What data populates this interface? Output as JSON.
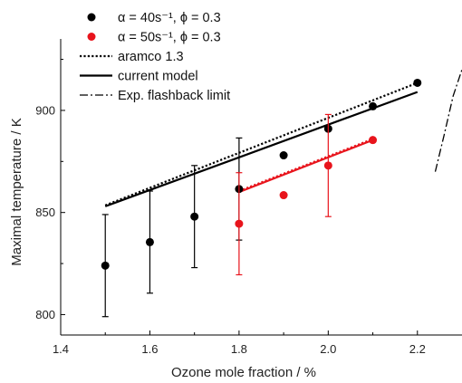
{
  "chart_data": {
    "type": "scatter",
    "xlabel": "Ozone mole fraction / %",
    "ylabel": "Maximal temperature / K",
    "xlim": [
      1.4,
      2.3
    ],
    "ylim": [
      790,
      935
    ],
    "xticks": [
      "1.4",
      "1.6",
      "1.8",
      "2.0",
      "2.2"
    ],
    "yticks": [
      "800",
      "850",
      "900"
    ],
    "grid": false,
    "legend_position": "top-left",
    "colors": {
      "black": "#000000",
      "red": "#e8141c"
    },
    "series": [
      {
        "name": "α = 40s⁻¹, ϕ = 0.3",
        "kind": "points",
        "color": "#000000",
        "points": [
          {
            "x": 1.5,
            "y": 824,
            "err": 25
          },
          {
            "x": 1.6,
            "y": 835.5,
            "err": 25
          },
          {
            "x": 1.7,
            "y": 848,
            "err": 25
          },
          {
            "x": 1.8,
            "y": 861.5,
            "err": 25
          },
          {
            "x": 1.9,
            "y": 878,
            "err": 0
          },
          {
            "x": 2.0,
            "y": 891,
            "err": 0
          },
          {
            "x": 2.1,
            "y": 902,
            "err": 0
          },
          {
            "x": 2.2,
            "y": 913.5,
            "err": 0
          }
        ]
      },
      {
        "name": "α = 50s⁻¹, ϕ = 0.3",
        "kind": "points",
        "color": "#e8141c",
        "points": [
          {
            "x": 1.8,
            "y": 844.5,
            "err": 25
          },
          {
            "x": 1.9,
            "y": 858.5,
            "err": 0
          },
          {
            "x": 2.0,
            "y": 873,
            "err": 25
          },
          {
            "x": 2.1,
            "y": 885.5,
            "err": 0
          }
        ]
      },
      {
        "name": "aramco 1.3",
        "kind": "line",
        "style": "dotted",
        "color": "#000000",
        "x": [
          1.5,
          2.2
        ],
        "y": [
          853.5,
          913.5
        ]
      },
      {
        "name": "current model",
        "kind": "line",
        "style": "solid",
        "color": "#000000",
        "x": [
          1.5,
          2.2
        ],
        "y": [
          853,
          909
        ]
      },
      {
        "name": "",
        "kind": "line",
        "style": "dotted",
        "color": "#e8141c",
        "x": [
          1.8,
          2.1
        ],
        "y": [
          860.5,
          886
        ]
      },
      {
        "name": "",
        "kind": "line",
        "style": "solid",
        "color": "#e8141c",
        "x": [
          1.8,
          2.1
        ],
        "y": [
          860,
          885.5
        ]
      },
      {
        "name": "Exp. flashback limit",
        "kind": "line",
        "style": "dashdot",
        "color": "#000000",
        "x": [
          2.24,
          2.26,
          2.28,
          2.3
        ],
        "y": [
          870,
          888,
          907,
          920
        ]
      }
    ],
    "legend": [
      {
        "label": "α = 40s⁻¹, ϕ = 0.3",
        "marker": "point",
        "color": "#000000"
      },
      {
        "label": "α = 50s⁻¹, ϕ = 0.3",
        "marker": "point",
        "color": "#e8141c"
      },
      {
        "label": "aramco 1.3",
        "marker": "dotted",
        "color": "#000000"
      },
      {
        "label": "current model",
        "marker": "solid",
        "color": "#000000"
      },
      {
        "label": "Exp. flashback limit",
        "marker": "dashdot",
        "color": "#000000"
      }
    ]
  }
}
